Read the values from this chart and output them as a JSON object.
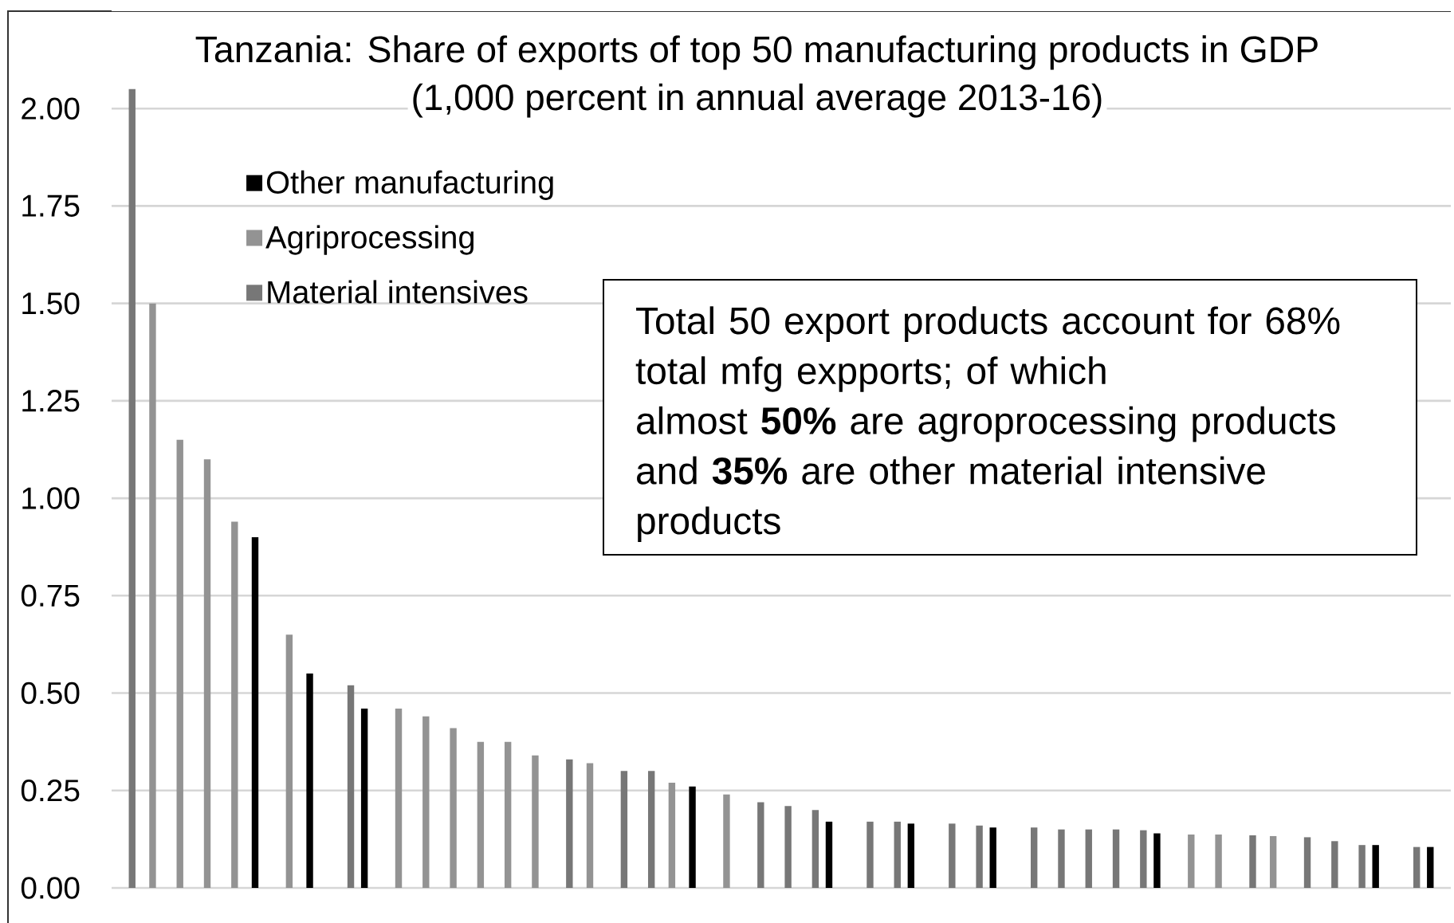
{
  "chart_data": {
    "type": "bar",
    "title": "Tanzania: Share of exports of top 50 manufacturing products in GDP",
    "subtitle": "(1,000 percent in annual average 2013-16)",
    "categories": [
      null,
      null,
      null,
      null,
      null,
      null,
      null,
      null,
      null,
      null,
      null,
      null,
      null,
      null,
      null,
      null,
      null,
      null,
      null,
      null,
      null,
      null,
      null,
      null,
      null,
      null,
      null,
      null,
      null,
      null,
      null,
      null,
      null,
      null,
      null,
      null,
      null,
      null,
      null,
      null,
      null,
      null,
      null,
      null,
      null,
      null,
      null,
      null,
      null
    ],
    "series": [
      {
        "name": "Other manufacturing",
        "color": "#000000",
        "values": [
          null,
          null,
          null,
          null,
          null,
          0.9,
          null,
          0.55,
          null,
          0.46,
          null,
          null,
          null,
          null,
          null,
          null,
          null,
          null,
          null,
          null,
          null,
          0.26,
          null,
          null,
          null,
          null,
          0.17,
          null,
          null,
          0.165,
          null,
          null,
          0.155,
          null,
          null,
          null,
          null,
          null,
          0.14,
          null,
          null,
          null,
          null,
          null,
          null,
          null,
          0.11,
          null,
          0.105
        ]
      },
      {
        "name": "Agriprocessing",
        "color": "#939393",
        "values": [
          null,
          1.5,
          1.15,
          1.1,
          0.94,
          null,
          0.65,
          null,
          null,
          null,
          0.46,
          0.44,
          0.41,
          0.375,
          0.375,
          0.34,
          null,
          0.32,
          null,
          null,
          0.27,
          null,
          0.24,
          null,
          null,
          null,
          null,
          null,
          null,
          null,
          null,
          null,
          null,
          null,
          null,
          null,
          null,
          null,
          null,
          0.137,
          0.137,
          null,
          0.133,
          null,
          null,
          null,
          null,
          null,
          null
        ]
      },
      {
        "name": "Material intensives",
        "color": "#777777",
        "values": [
          2.05,
          null,
          null,
          null,
          null,
          null,
          null,
          null,
          0.52,
          null,
          null,
          null,
          null,
          null,
          null,
          null,
          0.33,
          null,
          0.3,
          0.3,
          null,
          null,
          null,
          0.22,
          0.21,
          0.2,
          null,
          0.17,
          0.17,
          null,
          0.165,
          0.16,
          null,
          0.155,
          0.15,
          0.15,
          0.15,
          0.148,
          null,
          null,
          null,
          0.135,
          null,
          0.13,
          0.12,
          0.11,
          null,
          0.105,
          null
        ]
      }
    ],
    "ylim": [
      0,
      2.25
    ],
    "yticks": [
      {
        "value": 0,
        "label": "0.00"
      },
      {
        "value": 0.25,
        "label": "0.25"
      },
      {
        "value": 0.5,
        "label": "0.50"
      },
      {
        "value": 0.75,
        "label": "0.75"
      },
      {
        "value": 1,
        "label": "1.00"
      },
      {
        "value": 1.25,
        "label": "1.25"
      },
      {
        "value": 1.5,
        "label": "1.50"
      },
      {
        "value": 1.75,
        "label": "1.75"
      },
      {
        "value": 2,
        "label": "2.00"
      }
    ],
    "grid": "y",
    "legend": "top left",
    "tick_labels": "y",
    "annotations": [
      "Total 50 export products account for 68% total mfg expports; of which",
      "almost **50%** are agroprocessing products and **35%** are other material intensive products"
    ]
  }
}
